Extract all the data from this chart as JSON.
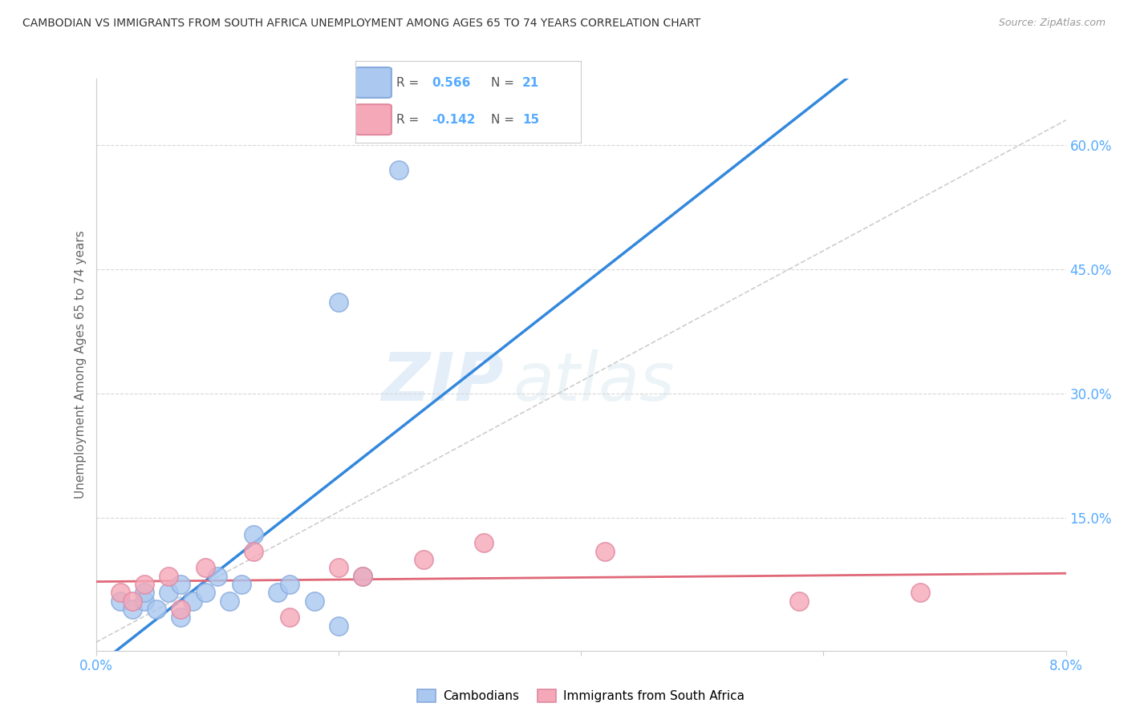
{
  "title": "CAMBODIAN VS IMMIGRANTS FROM SOUTH AFRICA UNEMPLOYMENT AMONG AGES 65 TO 74 YEARS CORRELATION CHART",
  "source": "Source: ZipAtlas.com",
  "ylabel": "Unemployment Among Ages 65 to 74 years",
  "xlim": [
    0.0,
    0.08
  ],
  "ylim": [
    -0.01,
    0.68
  ],
  "xticks": [
    0.0,
    0.02,
    0.04,
    0.06,
    0.08
  ],
  "xtick_labels": [
    "0.0%",
    "",
    "",
    "",
    "8.0%"
  ],
  "yticks_right": [
    0.15,
    0.3,
    0.45,
    0.6
  ],
  "ytick_labels_right": [
    "15.0%",
    "30.0%",
    "45.0%",
    "60.0%"
  ],
  "cambodian_color": "#aac8f0",
  "southafrica_color": "#f5a8b8",
  "cambodian_edge": "#88aadd",
  "southafrica_edge": "#e088a0",
  "cambodian_r": "0.566",
  "cambodian_n": "21",
  "southafrica_r": "-0.142",
  "southafrica_n": "15",
  "cambodian_line_color": "#3388dd",
  "southafrica_line_color": "#e06878",
  "ref_line_color": "#c8c8c8",
  "watermark_zip": "ZIP",
  "watermark_atlas": "atlas",
  "cambodians_x": [
    0.002,
    0.003,
    0.004,
    0.004,
    0.005,
    0.006,
    0.007,
    0.007,
    0.008,
    0.009,
    0.01,
    0.011,
    0.012,
    0.013,
    0.015,
    0.016,
    0.018,
    0.02,
    0.022,
    0.02,
    0.025
  ],
  "cambodians_y": [
    0.05,
    0.04,
    0.05,
    0.06,
    0.04,
    0.06,
    0.07,
    0.03,
    0.05,
    0.06,
    0.08,
    0.05,
    0.07,
    0.13,
    0.06,
    0.07,
    0.05,
    0.02,
    0.08,
    0.41,
    0.57
  ],
  "southafrica_x": [
    0.002,
    0.003,
    0.004,
    0.006,
    0.007,
    0.009,
    0.013,
    0.016,
    0.02,
    0.022,
    0.027,
    0.032,
    0.042,
    0.058,
    0.068
  ],
  "southafrica_y": [
    0.06,
    0.05,
    0.07,
    0.08,
    0.04,
    0.09,
    0.11,
    0.03,
    0.09,
    0.08,
    0.1,
    0.12,
    0.11,
    0.05,
    0.06
  ],
  "background_color": "#ffffff",
  "grid_color": "#d8d8d8",
  "axis_color": "#cccccc",
  "tick_label_color": "#55aaff",
  "ylabel_color": "#666666",
  "title_color": "#333333",
  "source_color": "#999999"
}
